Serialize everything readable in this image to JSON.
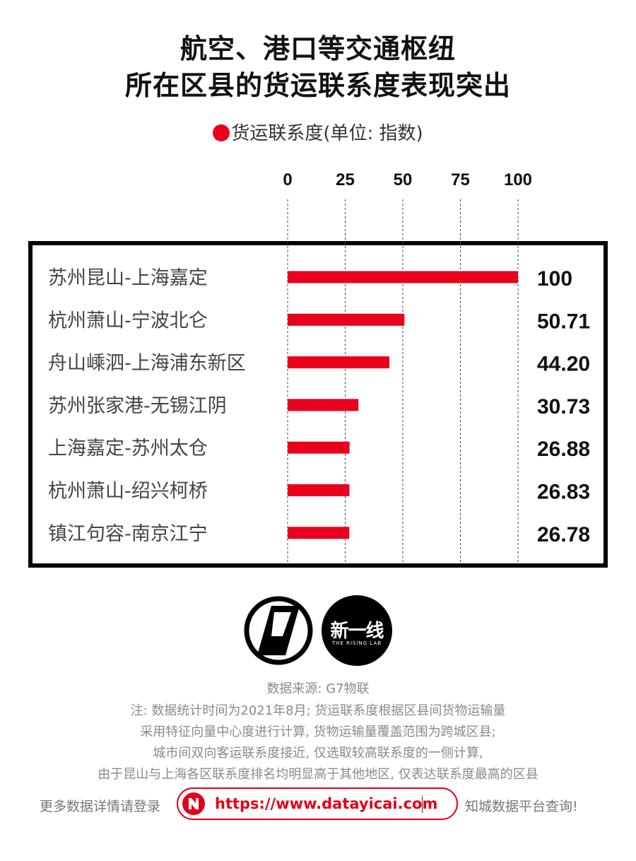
{
  "title": {
    "line1": "航空、港口等交通枢纽",
    "line2": "所在区县的货运联系度表现突出"
  },
  "legend": {
    "label": "货运联系度(单位: 指数)",
    "color": "#e8001c"
  },
  "chart_data": {
    "type": "bar",
    "orientation": "horizontal",
    "categories": [
      "苏州昆山-上海嘉定",
      "杭州萧山-宁波北仑",
      "舟山嵊泗-上海浦东新区",
      "苏州张家港-无锡江阴",
      "上海嘉定-苏州太仓",
      "杭州萧山-绍兴柯桥",
      "镇江句容-南京江宁"
    ],
    "values": [
      100,
      50.71,
      44.2,
      30.73,
      26.88,
      26.83,
      26.78
    ],
    "value_labels": [
      "100",
      "50.71",
      "44.20",
      "30.73",
      "26.88",
      "26.83",
      "26.78"
    ],
    "xticks": [
      "0",
      "25",
      "50",
      "75",
      "100"
    ],
    "xlim": [
      0,
      100
    ],
    "grid": "dashed vertical lines",
    "bar_color": "#e8001c"
  },
  "logo": {
    "name": "新一线",
    "subtitle": "THE RISING LAB"
  },
  "source": "数据来源: G7物联",
  "notes": [
    "注: 数据统计时间为2021年8月; 货运联系度根据区县间货物运输量",
    "采用特征向量中心度进行计算, 货物运输量覆盖范围为跨城区县;",
    "城市间双向客运联系度接近, 仅选取较高联系度的一侧计算,",
    "由于昆山与上海各区联系度排名均明显高于其他地区, 仅表达联系度最高的区县"
  ],
  "footer": {
    "left_text": "更多数据详情请登录",
    "url": "https://www.datayicai.com",
    "right_text": "知城数据平台查询!"
  }
}
